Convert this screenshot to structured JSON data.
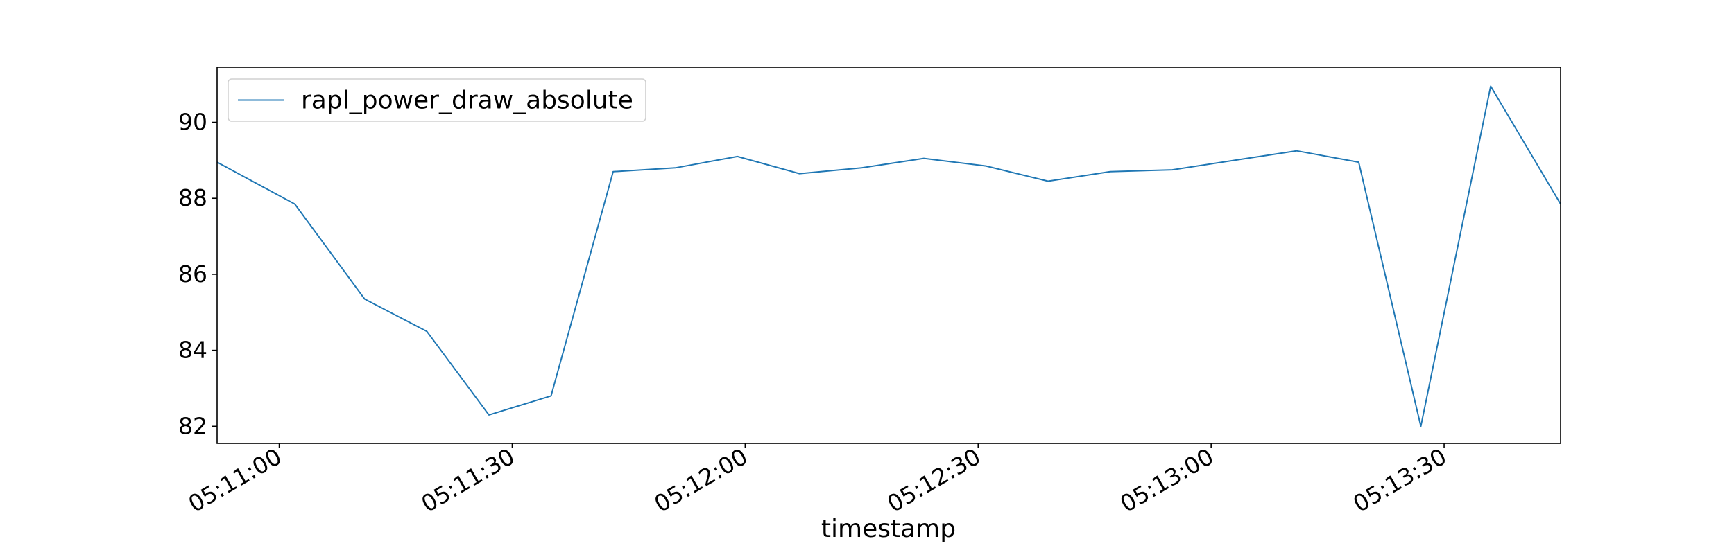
{
  "chart_data": {
    "type": "line",
    "title": "",
    "xlabel": "timestamp",
    "ylabel": "",
    "x_axis": {
      "kind": "time",
      "xlim": [
        "05:10:52",
        "05:13:45"
      ],
      "tick_labels": [
        "05:11:00",
        "05:11:30",
        "05:12:00",
        "05:12:30",
        "05:13:00",
        "05:13:30"
      ]
    },
    "y_axis": {
      "ylim": [
        81.55,
        91.45
      ],
      "ticks": [
        82,
        84,
        86,
        88,
        90
      ],
      "tick_labels": [
        "82",
        "84",
        "86",
        "88",
        "90"
      ]
    },
    "grid": false,
    "legend": {
      "placement": "upper-left",
      "entries": [
        "rapl_power_draw_absolute"
      ]
    },
    "series": [
      {
        "name": "rapl_power_draw_absolute",
        "color": "#1f77b4",
        "x": [
          "05:10:52",
          "05:11:02",
          "05:11:11",
          "05:11:19",
          "05:11:27",
          "05:11:35",
          "05:11:43",
          "05:11:51",
          "05:11:59",
          "05:12:07",
          "05:12:15",
          "05:12:23",
          "05:12:31",
          "05:12:39",
          "05:12:47",
          "05:12:55",
          "05:13:03",
          "05:13:11",
          "05:13:19",
          "05:13:27",
          "05:13:36",
          "05:13:45"
        ],
        "values": [
          88.95,
          87.85,
          85.35,
          84.5,
          82.3,
          82.8,
          88.7,
          88.8,
          89.1,
          88.65,
          88.8,
          89.05,
          88.85,
          88.45,
          88.7,
          88.75,
          89.0,
          89.25,
          88.95,
          82.0,
          90.95,
          87.85
        ]
      }
    ]
  }
}
